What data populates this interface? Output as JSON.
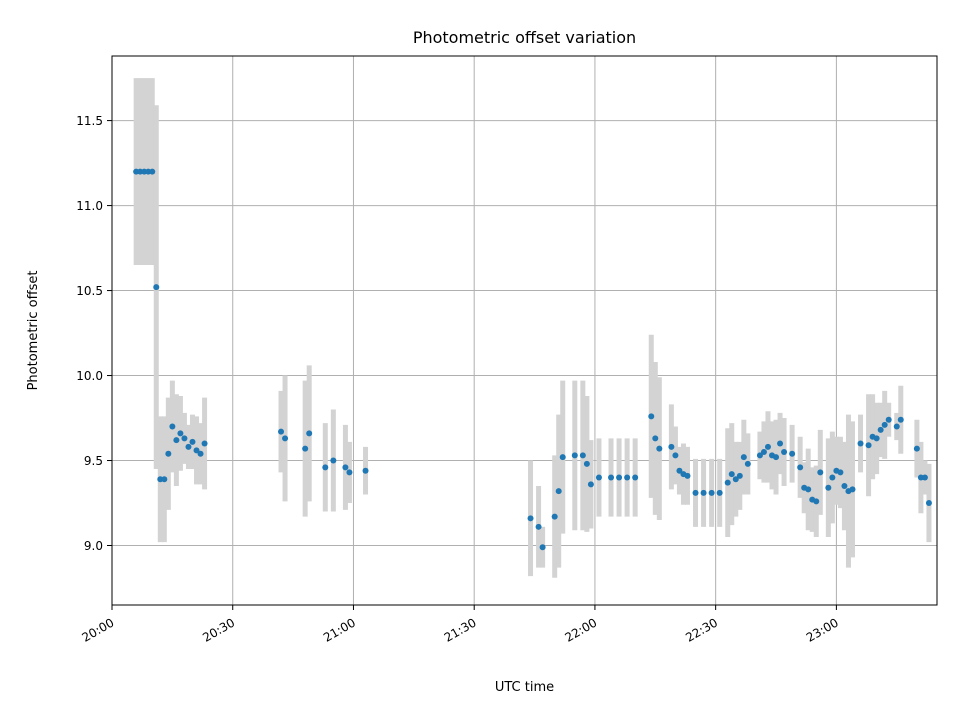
{
  "chart_data": {
    "type": "scatter",
    "title": "Photometric offset variation",
    "xlabel": "UTC time",
    "ylabel": "Photometric offset",
    "x_unit": "UTC time of day",
    "xlim": [
      "20:00",
      "23:25"
    ],
    "ylim": [
      8.65,
      11.88
    ],
    "grid": true,
    "legend": "none",
    "x_ticks": [
      "20:00",
      "20:30",
      "21:00",
      "21:30",
      "22:00",
      "22:30",
      "23:00"
    ],
    "y_ticks": [
      "9.0",
      "9.5",
      "10.0",
      "10.5",
      "11.0",
      "11.5"
    ],
    "marker_color": "#1f77b4",
    "errorbar_color": "#d3d3d3",
    "points": [
      {
        "t": "20:06",
        "y": 11.2,
        "err": 0.55
      },
      {
        "t": "20:07",
        "y": 11.2,
        "err": 0.55
      },
      {
        "t": "20:08",
        "y": 11.2,
        "err": 0.55
      },
      {
        "t": "20:09",
        "y": 11.2,
        "err": 0.55
      },
      {
        "t": "20:10",
        "y": 11.2,
        "err": 0.55
      },
      {
        "t": "20:11",
        "y": 10.52,
        "err": 1.07
      },
      {
        "t": "20:12",
        "y": 9.39,
        "err": 0.37
      },
      {
        "t": "20:13",
        "y": 9.39,
        "err": 0.37
      },
      {
        "t": "20:14",
        "y": 9.54,
        "err": 0.33
      },
      {
        "t": "20:15",
        "y": 9.7,
        "err": 0.27
      },
      {
        "t": "20:16",
        "y": 9.62,
        "err": 0.27
      },
      {
        "t": "20:17",
        "y": 9.66,
        "err": 0.22
      },
      {
        "t": "20:18",
        "y": 9.63,
        "err": 0.15
      },
      {
        "t": "20:19",
        "y": 9.58,
        "err": 0.13
      },
      {
        "t": "20:20",
        "y": 9.61,
        "err": 0.16
      },
      {
        "t": "20:21",
        "y": 9.56,
        "err": 0.2
      },
      {
        "t": "20:22",
        "y": 9.54,
        "err": 0.18
      },
      {
        "t": "20:23",
        "y": 9.6,
        "err": 0.27
      },
      {
        "t": "20:42",
        "y": 9.67,
        "err": 0.24
      },
      {
        "t": "20:43",
        "y": 9.63,
        "err": 0.37
      },
      {
        "t": "20:48",
        "y": 9.57,
        "err": 0.4
      },
      {
        "t": "20:49",
        "y": 9.66,
        "err": 0.4
      },
      {
        "t": "20:53",
        "y": 9.46,
        "err": 0.26
      },
      {
        "t": "20:55",
        "y": 9.5,
        "err": 0.3
      },
      {
        "t": "20:58",
        "y": 9.46,
        "err": 0.25
      },
      {
        "t": "20:59",
        "y": 9.43,
        "err": 0.18
      },
      {
        "t": "21:03",
        "y": 9.44,
        "err": 0.14
      },
      {
        "t": "21:44",
        "y": 9.16,
        "err": 0.34
      },
      {
        "t": "21:46",
        "y": 9.11,
        "err": 0.24
      },
      {
        "t": "21:47",
        "y": 8.99,
        "err": 0.12
      },
      {
        "t": "21:50",
        "y": 9.17,
        "err": 0.36
      },
      {
        "t": "21:51",
        "y": 9.32,
        "err": 0.45
      },
      {
        "t": "21:52",
        "y": 9.52,
        "err": 0.45
      },
      {
        "t": "21:55",
        "y": 9.53,
        "err": 0.44
      },
      {
        "t": "21:57",
        "y": 9.53,
        "err": 0.44
      },
      {
        "t": "21:58",
        "y": 9.48,
        "err": 0.4
      },
      {
        "t": "21:59",
        "y": 9.36,
        "err": 0.26
      },
      {
        "t": "22:01",
        "y": 9.4,
        "err": 0.23
      },
      {
        "t": "22:04",
        "y": 9.4,
        "err": 0.23
      },
      {
        "t": "22:06",
        "y": 9.4,
        "err": 0.23
      },
      {
        "t": "22:08",
        "y": 9.4,
        "err": 0.23
      },
      {
        "t": "22:10",
        "y": 9.4,
        "err": 0.23
      },
      {
        "t": "22:14",
        "y": 9.76,
        "err": 0.48
      },
      {
        "t": "22:15",
        "y": 9.63,
        "err": 0.45
      },
      {
        "t": "22:16",
        "y": 9.57,
        "err": 0.42
      },
      {
        "t": "22:19",
        "y": 9.58,
        "err": 0.25
      },
      {
        "t": "22:20",
        "y": 9.53,
        "err": 0.17
      },
      {
        "t": "22:21",
        "y": 9.44,
        "err": 0.14
      },
      {
        "t": "22:22",
        "y": 9.42,
        "err": 0.18
      },
      {
        "t": "22:23",
        "y": 9.41,
        "err": 0.17
      },
      {
        "t": "22:25",
        "y": 9.31,
        "err": 0.2
      },
      {
        "t": "22:27",
        "y": 9.31,
        "err": 0.2
      },
      {
        "t": "22:29",
        "y": 9.31,
        "err": 0.2
      },
      {
        "t": "22:31",
        "y": 9.31,
        "err": 0.2
      },
      {
        "t": "22:33",
        "y": 9.37,
        "err": 0.32
      },
      {
        "t": "22:34",
        "y": 9.42,
        "err": 0.3
      },
      {
        "t": "22:35",
        "y": 9.39,
        "err": 0.22
      },
      {
        "t": "22:36",
        "y": 9.41,
        "err": 0.2
      },
      {
        "t": "22:37",
        "y": 9.52,
        "err": 0.22
      },
      {
        "t": "22:38",
        "y": 9.48,
        "err": 0.18
      },
      {
        "t": "22:41",
        "y": 9.53,
        "err": 0.14
      },
      {
        "t": "22:42",
        "y": 9.55,
        "err": 0.18
      },
      {
        "t": "22:43",
        "y": 9.58,
        "err": 0.21
      },
      {
        "t": "22:44",
        "y": 9.53,
        "err": 0.2
      },
      {
        "t": "22:45",
        "y": 9.52,
        "err": 0.22
      },
      {
        "t": "22:46",
        "y": 9.6,
        "err": 0.18
      },
      {
        "t": "22:47",
        "y": 9.55,
        "err": 0.2
      },
      {
        "t": "22:49",
        "y": 9.54,
        "err": 0.17
      },
      {
        "t": "22:51",
        "y": 9.46,
        "err": 0.18
      },
      {
        "t": "22:52",
        "y": 9.34,
        "err": 0.15
      },
      {
        "t": "22:53",
        "y": 9.33,
        "err": 0.24
      },
      {
        "t": "22:54",
        "y": 9.27,
        "err": 0.19
      },
      {
        "t": "22:55",
        "y": 9.26,
        "err": 0.21
      },
      {
        "t": "22:56",
        "y": 9.43,
        "err": 0.25
      },
      {
        "t": "22:58",
        "y": 9.34,
        "err": 0.29
      },
      {
        "t": "22:59",
        "y": 9.4,
        "err": 0.27
      },
      {
        "t": "23:00",
        "y": 9.44,
        "err": 0.2
      },
      {
        "t": "23:01",
        "y": 9.43,
        "err": 0.21
      },
      {
        "t": "23:02",
        "y": 9.35,
        "err": 0.26
      },
      {
        "t": "23:03",
        "y": 9.32,
        "err": 0.45
      },
      {
        "t": "23:04",
        "y": 9.33,
        "err": 0.4
      },
      {
        "t": "23:06",
        "y": 9.6,
        "err": 0.17
      },
      {
        "t": "23:08",
        "y": 9.59,
        "err": 0.3
      },
      {
        "t": "23:09",
        "y": 9.64,
        "err": 0.25
      },
      {
        "t": "23:10",
        "y": 9.63,
        "err": 0.21
      },
      {
        "t": "23:11",
        "y": 9.68,
        "err": 0.16
      },
      {
        "t": "23:12",
        "y": 9.71,
        "err": 0.2
      },
      {
        "t": "23:13",
        "y": 9.74,
        "err": 0.1
      },
      {
        "t": "23:15",
        "y": 9.7,
        "err": 0.08
      },
      {
        "t": "23:16",
        "y": 9.74,
        "err": 0.2
      },
      {
        "t": "23:20",
        "y": 9.57,
        "err": 0.17
      },
      {
        "t": "23:21",
        "y": 9.4,
        "err": 0.21
      },
      {
        "t": "23:22",
        "y": 9.4,
        "err": 0.1
      },
      {
        "t": "23:23",
        "y": 9.25,
        "err": 0.23
      }
    ]
  }
}
